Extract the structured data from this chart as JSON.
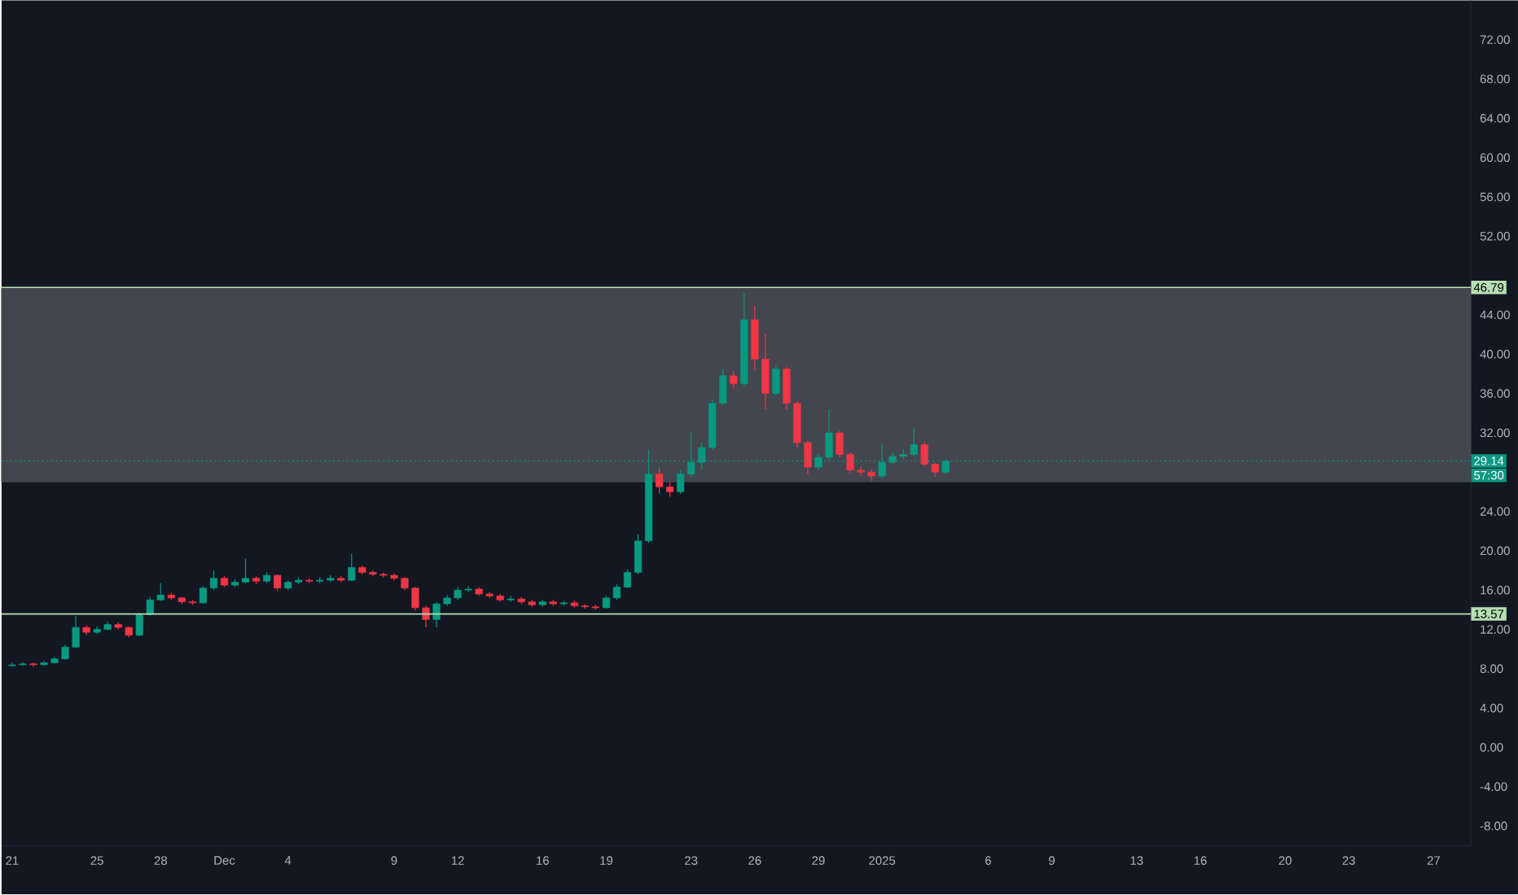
{
  "chart_data": {
    "type": "candlestick",
    "x": [
      "2024-11-21T00:00",
      "2024-11-21T12:00",
      "2024-11-22T00:00",
      "2024-11-22T12:00",
      "2024-11-23T00:00",
      "2024-11-23T12:00",
      "2024-11-24T00:00",
      "2024-11-24T12:00",
      "2024-11-25T00:00",
      "2024-11-25T12:00",
      "2024-11-26T00:00",
      "2024-11-26T12:00",
      "2024-11-27T00:00",
      "2024-11-27T12:00",
      "2024-11-28T00:00",
      "2024-11-28T12:00",
      "2024-11-29T00:00",
      "2024-11-29T12:00",
      "2024-11-30T00:00",
      "2024-11-30T12:00",
      "2024-12-01T00:00",
      "2024-12-01T12:00",
      "2024-12-02T00:00",
      "2024-12-02T12:00",
      "2024-12-03T00:00",
      "2024-12-03T12:00",
      "2024-12-04T00:00",
      "2024-12-04T12:00",
      "2024-12-05T00:00",
      "2024-12-05T12:00",
      "2024-12-06T00:00",
      "2024-12-06T12:00",
      "2024-12-07T00:00",
      "2024-12-07T12:00",
      "2024-12-08T00:00",
      "2024-12-08T12:00",
      "2024-12-09T00:00",
      "2024-12-09T12:00",
      "2024-12-10T00:00",
      "2024-12-10T12:00",
      "2024-12-11T00:00",
      "2024-12-11T12:00",
      "2024-12-12T00:00",
      "2024-12-12T12:00",
      "2024-12-13T00:00",
      "2024-12-13T12:00",
      "2024-12-14T00:00",
      "2024-12-14T12:00",
      "2024-12-15T00:00",
      "2024-12-15T12:00",
      "2024-12-16T00:00",
      "2024-12-16T12:00",
      "2024-12-17T00:00",
      "2024-12-17T12:00",
      "2024-12-18T00:00",
      "2024-12-18T12:00",
      "2024-12-19T00:00",
      "2024-12-19T12:00",
      "2024-12-20T00:00",
      "2024-12-20T12:00",
      "2024-12-21T00:00",
      "2024-12-21T12:00",
      "2024-12-22T00:00",
      "2024-12-22T12:00",
      "2024-12-23T00:00",
      "2024-12-23T12:00",
      "2024-12-24T00:00",
      "2024-12-24T12:00",
      "2024-12-25T00:00",
      "2024-12-25T12:00",
      "2024-12-26T00:00",
      "2024-12-26T12:00",
      "2024-12-27T00:00",
      "2024-12-27T12:00",
      "2024-12-28T00:00",
      "2024-12-28T12:00",
      "2024-12-29T00:00",
      "2024-12-29T12:00",
      "2024-12-30T00:00",
      "2024-12-30T12:00",
      "2024-12-31T00:00",
      "2024-12-31T12:00",
      "2025-01-01T00:00",
      "2025-01-01T12:00",
      "2025-01-02T00:00",
      "2025-01-02T12:00",
      "2025-01-03T00:00",
      "2025-01-03T12:00",
      "2025-01-04T00:00"
    ],
    "ohlc": [
      [
        8.3,
        8.6,
        8.2,
        8.4
      ],
      [
        8.4,
        8.7,
        8.3,
        8.5
      ],
      [
        8.5,
        8.6,
        8.2,
        8.4
      ],
      [
        8.4,
        8.8,
        8.3,
        8.6
      ],
      [
        8.6,
        9.2,
        8.5,
        9.0
      ],
      [
        9.0,
        10.4,
        8.9,
        10.2
      ],
      [
        10.2,
        13.4,
        10.1,
        12.2
      ],
      [
        12.2,
        12.4,
        11.4,
        11.7
      ],
      [
        11.7,
        12.3,
        11.5,
        12.0
      ],
      [
        12.0,
        12.8,
        11.9,
        12.5
      ],
      [
        12.5,
        12.7,
        12.0,
        12.2
      ],
      [
        12.2,
        12.3,
        11.2,
        11.4
      ],
      [
        11.4,
        13.7,
        11.3,
        13.5
      ],
      [
        13.5,
        15.3,
        13.4,
        15.0
      ],
      [
        15.0,
        16.7,
        14.9,
        15.5
      ],
      [
        15.5,
        15.7,
        15.0,
        15.2
      ],
      [
        15.2,
        15.3,
        14.6,
        14.8
      ],
      [
        14.8,
        15.0,
        14.5,
        14.7
      ],
      [
        14.7,
        16.4,
        14.6,
        16.2
      ],
      [
        16.2,
        18.0,
        16.0,
        17.2
      ],
      [
        17.2,
        17.4,
        16.3,
        16.5
      ],
      [
        16.5,
        17.1,
        16.3,
        16.8
      ],
      [
        16.8,
        19.2,
        16.7,
        17.2
      ],
      [
        17.2,
        17.4,
        16.6,
        16.9
      ],
      [
        16.9,
        17.8,
        16.7,
        17.5
      ],
      [
        17.5,
        17.6,
        15.9,
        16.2
      ],
      [
        16.2,
        17.0,
        16.0,
        16.8
      ],
      [
        16.8,
        17.3,
        16.6,
        17.0
      ],
      [
        17.0,
        17.2,
        16.7,
        16.9
      ],
      [
        16.9,
        17.3,
        16.7,
        17.0
      ],
      [
        17.0,
        17.5,
        16.8,
        17.2
      ],
      [
        17.2,
        17.4,
        16.8,
        17.0
      ],
      [
        17.0,
        19.7,
        16.9,
        18.3
      ],
      [
        18.3,
        18.5,
        17.6,
        17.8
      ],
      [
        17.8,
        18.0,
        17.4,
        17.6
      ],
      [
        17.6,
        17.8,
        17.3,
        17.5
      ],
      [
        17.5,
        17.7,
        17.0,
        17.2
      ],
      [
        17.2,
        17.3,
        16.0,
        16.2
      ],
      [
        16.2,
        16.3,
        13.9,
        14.2
      ],
      [
        14.2,
        14.4,
        12.2,
        13.0
      ],
      [
        13.0,
        14.8,
        12.2,
        14.6
      ],
      [
        14.6,
        15.5,
        14.4,
        15.2
      ],
      [
        15.2,
        16.3,
        15.0,
        16.0
      ],
      [
        16.0,
        16.4,
        15.8,
        16.1
      ],
      [
        16.1,
        16.3,
        15.4,
        15.6
      ],
      [
        15.6,
        15.8,
        15.2,
        15.4
      ],
      [
        15.4,
        15.6,
        14.8,
        15.0
      ],
      [
        15.0,
        15.4,
        14.8,
        15.1
      ],
      [
        15.1,
        15.3,
        14.6,
        14.8
      ],
      [
        14.8,
        15.0,
        14.3,
        14.5
      ],
      [
        14.5,
        15.0,
        14.3,
        14.8
      ],
      [
        14.8,
        15.0,
        14.4,
        14.6
      ],
      [
        14.6,
        14.9,
        14.4,
        14.7
      ],
      [
        14.7,
        14.9,
        14.2,
        14.4
      ],
      [
        14.4,
        14.6,
        14.1,
        14.3
      ],
      [
        14.3,
        14.5,
        14.0,
        14.2
      ],
      [
        14.2,
        15.4,
        14.1,
        15.2
      ],
      [
        15.2,
        16.6,
        15.0,
        16.3
      ],
      [
        16.3,
        18.1,
        16.2,
        17.8
      ],
      [
        17.8,
        21.7,
        17.6,
        21.0
      ],
      [
        21.0,
        30.3,
        20.8,
        27.8
      ],
      [
        27.8,
        28.5,
        25.8,
        26.5
      ],
      [
        26.5,
        27.0,
        25.5,
        26.0
      ],
      [
        26.0,
        28.2,
        25.8,
        27.8
      ],
      [
        27.8,
        32.1,
        27.5,
        29.0
      ],
      [
        29.0,
        31.0,
        28.3,
        30.5
      ],
      [
        30.5,
        35.4,
        30.3,
        35.0
      ],
      [
        35.0,
        38.5,
        34.8,
        37.8
      ],
      [
        37.8,
        38.3,
        36.5,
        37.0
      ],
      [
        37.0,
        46.2,
        36.8,
        43.5
      ],
      [
        43.5,
        44.9,
        38.3,
        39.5
      ],
      [
        39.5,
        42.1,
        34.4,
        36.0
      ],
      [
        36.0,
        38.8,
        35.8,
        38.5
      ],
      [
        38.5,
        38.7,
        34.4,
        35.0
      ],
      [
        35.0,
        35.2,
        30.5,
        31.0
      ],
      [
        31.0,
        31.2,
        27.8,
        28.5
      ],
      [
        28.5,
        29.8,
        28.2,
        29.5
      ],
      [
        29.5,
        34.4,
        29.3,
        32.0
      ],
      [
        32.0,
        32.2,
        29.5,
        29.8
      ],
      [
        29.8,
        30.0,
        27.9,
        28.2
      ],
      [
        28.2,
        28.6,
        27.6,
        28.0
      ],
      [
        28.0,
        28.3,
        27.1,
        27.6
      ],
      [
        27.6,
        30.8,
        27.4,
        29.0
      ],
      [
        29.0,
        30.0,
        28.8,
        29.6
      ],
      [
        29.6,
        30.3,
        29.3,
        29.8
      ],
      [
        29.8,
        32.4,
        29.6,
        30.8
      ],
      [
        30.8,
        31.1,
        28.6,
        28.8
      ],
      [
        28.8,
        29.0,
        27.5,
        28.0
      ],
      [
        28.0,
        29.3,
        27.8,
        29.14
      ]
    ],
    "xlim": [
      "2024-11-20T12:00",
      "2025-01-28T18:00"
    ],
    "xticks": [
      {
        "value": "2024-11-21",
        "label": "21"
      },
      {
        "value": "2024-11-25",
        "label": "25"
      },
      {
        "value": "2024-11-28",
        "label": "28"
      },
      {
        "value": "2024-12-01",
        "label": "Dec"
      },
      {
        "value": "2024-12-04",
        "label": "4"
      },
      {
        "value": "2024-12-09",
        "label": "9"
      },
      {
        "value": "2024-12-12",
        "label": "12"
      },
      {
        "value": "2024-12-16",
        "label": "16"
      },
      {
        "value": "2024-12-19",
        "label": "19"
      },
      {
        "value": "2024-12-23",
        "label": "23"
      },
      {
        "value": "2024-12-26",
        "label": "26"
      },
      {
        "value": "2024-12-29",
        "label": "29"
      },
      {
        "value": "2025-01-01",
        "label": "2025"
      },
      {
        "value": "2025-01-06",
        "label": "6"
      },
      {
        "value": "2025-01-09",
        "label": "9"
      },
      {
        "value": "2025-01-13",
        "label": "13"
      },
      {
        "value": "2025-01-16",
        "label": "16"
      },
      {
        "value": "2025-01-20",
        "label": "20"
      },
      {
        "value": "2025-01-23",
        "label": "23"
      },
      {
        "value": "2025-01-27",
        "label": "27"
      }
    ],
    "ylim": [
      -10,
      76
    ],
    "yticks": [
      {
        "value": -8,
        "label": "-8.00"
      },
      {
        "value": -4,
        "label": "-4.00"
      },
      {
        "value": 0,
        "label": "0.00"
      },
      {
        "value": 4,
        "label": "4.00"
      },
      {
        "value": 8,
        "label": "8.00"
      },
      {
        "value": 12,
        "label": "12.00"
      },
      {
        "value": 16,
        "label": "16.00"
      },
      {
        "value": 20,
        "label": "20.00"
      },
      {
        "value": 24,
        "label": "24.00"
      },
      {
        "value": 32,
        "label": "32.00"
      },
      {
        "value": 36,
        "label": "36.00"
      },
      {
        "value": 40,
        "label": "40.00"
      },
      {
        "value": 44,
        "label": "44.00"
      },
      {
        "value": 52,
        "label": "52.00"
      },
      {
        "value": 56,
        "label": "56.00"
      },
      {
        "value": 60,
        "label": "60.00"
      },
      {
        "value": 64,
        "label": "64.00"
      },
      {
        "value": 68,
        "label": "68.00"
      },
      {
        "value": 72,
        "label": "72.00"
      }
    ],
    "ref_lines": [
      {
        "axis": "y",
        "value": 46.79,
        "label": "46.79",
        "color": "#b7dfb4",
        "line_style": "solid"
      },
      {
        "axis": "y",
        "value": 13.57,
        "label": "13.57",
        "color": "#b7dfb4",
        "line_style": "solid"
      },
      {
        "axis": "y",
        "value": 29.14,
        "label": "29.14",
        "color": "#089981",
        "line_style": "dotted"
      }
    ],
    "bands": [
      {
        "axis": "y",
        "from": 27.0,
        "to": 46.79,
        "color": "#43464f"
      }
    ],
    "annotations": [
      "57:30"
    ]
  }
}
